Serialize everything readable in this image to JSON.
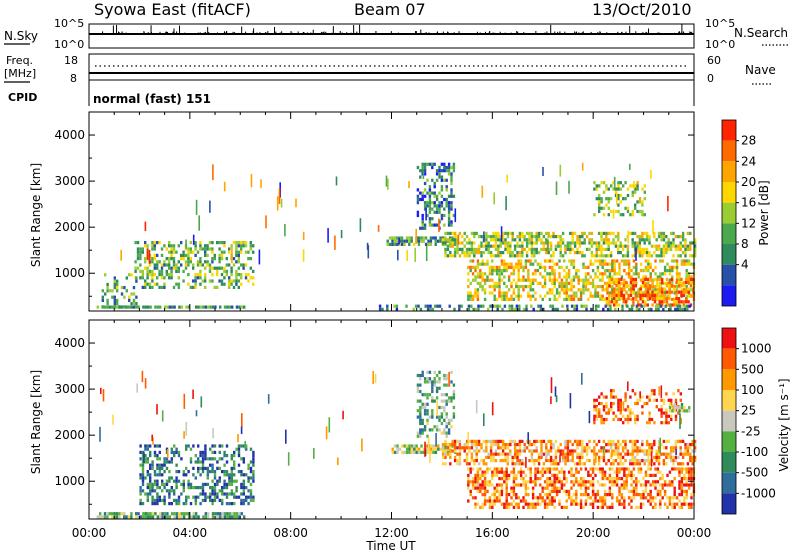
{
  "header": {
    "station": "Syowa East (fitACF)",
    "beam": "Beam 07",
    "date": "13/Oct/2010"
  },
  "top_panels": {
    "nsky_label": "N.Sky",
    "nsky_ticks": [
      "10^5",
      "10^0"
    ],
    "nsearch_label": "N.Search",
    "nsearch_ticks": [
      "10^5",
      "10^0"
    ],
    "freq_label": "Freq.",
    "freq_unit": "[MHz]",
    "freq_ticks": [
      "18",
      "8"
    ],
    "nave_label": "Nave",
    "nave_ticks": [
      "60",
      "0"
    ],
    "cpid_label": "CPID",
    "cpid_value": "normal (fast) 151"
  },
  "colors": {
    "power": [
      "#1c1cf0",
      "#2750a8",
      "#2f8c5a",
      "#4ca84c",
      "#9acd32",
      "#ffd700",
      "#ffa500",
      "#ff6a00",
      "#ff2400"
    ],
    "velocity": [
      "#2233aa",
      "#2f6e9c",
      "#2f8c5a",
      "#55b042",
      "#c8c8be",
      "#ffd54f",
      "#ff9900",
      "#ff5a00",
      "#ee1111"
    ]
  },
  "chart_data": [
    {
      "type": "heatmap",
      "panel": "power",
      "ylabel": "Slant Range [km]",
      "xlabel": "",
      "x_ticks": [
        "00:00",
        "04:00",
        "08:00",
        "12:00",
        "16:00",
        "20:00",
        "00:00"
      ],
      "xlim_hours": [
        0,
        24
      ],
      "y_ticks": [
        "1000",
        "2000",
        "3000",
        "4000"
      ],
      "ylim_km": [
        180,
        4500
      ],
      "colorbar_label": "Power [dB]",
      "colorbar_ticks": [
        "28",
        "24",
        "20",
        "16",
        "12",
        "8",
        "4"
      ],
      "colorbar_range": [
        0,
        30
      ],
      "regions": [
        {
          "t0": 0.3,
          "t1": 6.2,
          "r0": 250,
          "r1": 300,
          "level": 0.3,
          "density": 0.85
        },
        {
          "t0": 1.8,
          "t1": 6.5,
          "r0": 700,
          "r1": 1700,
          "level": 0.4,
          "density": 0.45
        },
        {
          "t0": 0.5,
          "t1": 2.0,
          "r0": 300,
          "r1": 1000,
          "level": 0.35,
          "density": 0.25
        },
        {
          "t0": 11.8,
          "t1": 14.5,
          "r0": 1650,
          "r1": 1800,
          "level": 0.35,
          "density": 0.8
        },
        {
          "t0": 13.0,
          "t1": 14.5,
          "r0": 2000,
          "r1": 3400,
          "level": 0.25,
          "density": 0.45
        },
        {
          "t0": 14.0,
          "t1": 24.0,
          "r0": 1400,
          "r1": 1900,
          "level": 0.5,
          "density": 0.6
        },
        {
          "t0": 15.0,
          "t1": 24.0,
          "r0": 450,
          "r1": 1300,
          "level": 0.6,
          "density": 0.55
        },
        {
          "t0": 20.5,
          "t1": 24.0,
          "r0": 300,
          "r1": 900,
          "level": 0.8,
          "density": 0.6
        },
        {
          "t0": 20.0,
          "t1": 22.0,
          "r0": 2300,
          "r1": 3000,
          "level": 0.45,
          "density": 0.35
        },
        {
          "t0": 11.5,
          "t1": 24.0,
          "r0": 250,
          "r1": 320,
          "level": 0.3,
          "density": 0.5
        }
      ]
    },
    {
      "type": "heatmap",
      "panel": "velocity",
      "ylabel": "Slant Range [km]",
      "xlabel": "Time UT",
      "x_ticks": [
        "00:00",
        "04:00",
        "08:00",
        "12:00",
        "16:00",
        "20:00",
        "00:00"
      ],
      "xlim_hours": [
        0,
        24
      ],
      "y_ticks": [
        "1000",
        "2000",
        "3000",
        "4000"
      ],
      "ylim_km": [
        180,
        4500
      ],
      "colorbar_label": "Velocity [m s⁻¹]",
      "colorbar_ticks": [
        "1000",
        "500",
        "100",
        "25",
        "-25",
        "-100",
        "-500",
        "-1000"
      ],
      "colorbar_range": [
        -1000,
        1000
      ],
      "regions": [
        {
          "t0": 0.3,
          "t1": 6.2,
          "r0": 250,
          "r1": 330,
          "level": 0.38,
          "density": 0.8
        },
        {
          "t0": 2.0,
          "t1": 6.5,
          "r0": 500,
          "r1": 1800,
          "level": 0.2,
          "density": 0.45
        },
        {
          "t0": 12.0,
          "t1": 14.5,
          "r0": 1650,
          "r1": 1800,
          "level": 0.5,
          "density": 0.8
        },
        {
          "t0": 13.0,
          "t1": 14.5,
          "r0": 2000,
          "r1": 3400,
          "level": 0.35,
          "density": 0.45
        },
        {
          "t0": 14.0,
          "t1": 24.0,
          "r0": 1400,
          "r1": 1900,
          "level": 0.72,
          "density": 0.6
        },
        {
          "t0": 15.0,
          "t1": 24.0,
          "r0": 450,
          "r1": 1300,
          "level": 0.78,
          "density": 0.55
        },
        {
          "t0": 20.0,
          "t1": 23.5,
          "r0": 2300,
          "r1": 3000,
          "level": 0.82,
          "density": 0.4
        },
        {
          "t0": 23.0,
          "t1": 23.8,
          "r0": 2500,
          "r1": 2700,
          "level": 0.5,
          "density": 0.7
        }
      ]
    }
  ]
}
